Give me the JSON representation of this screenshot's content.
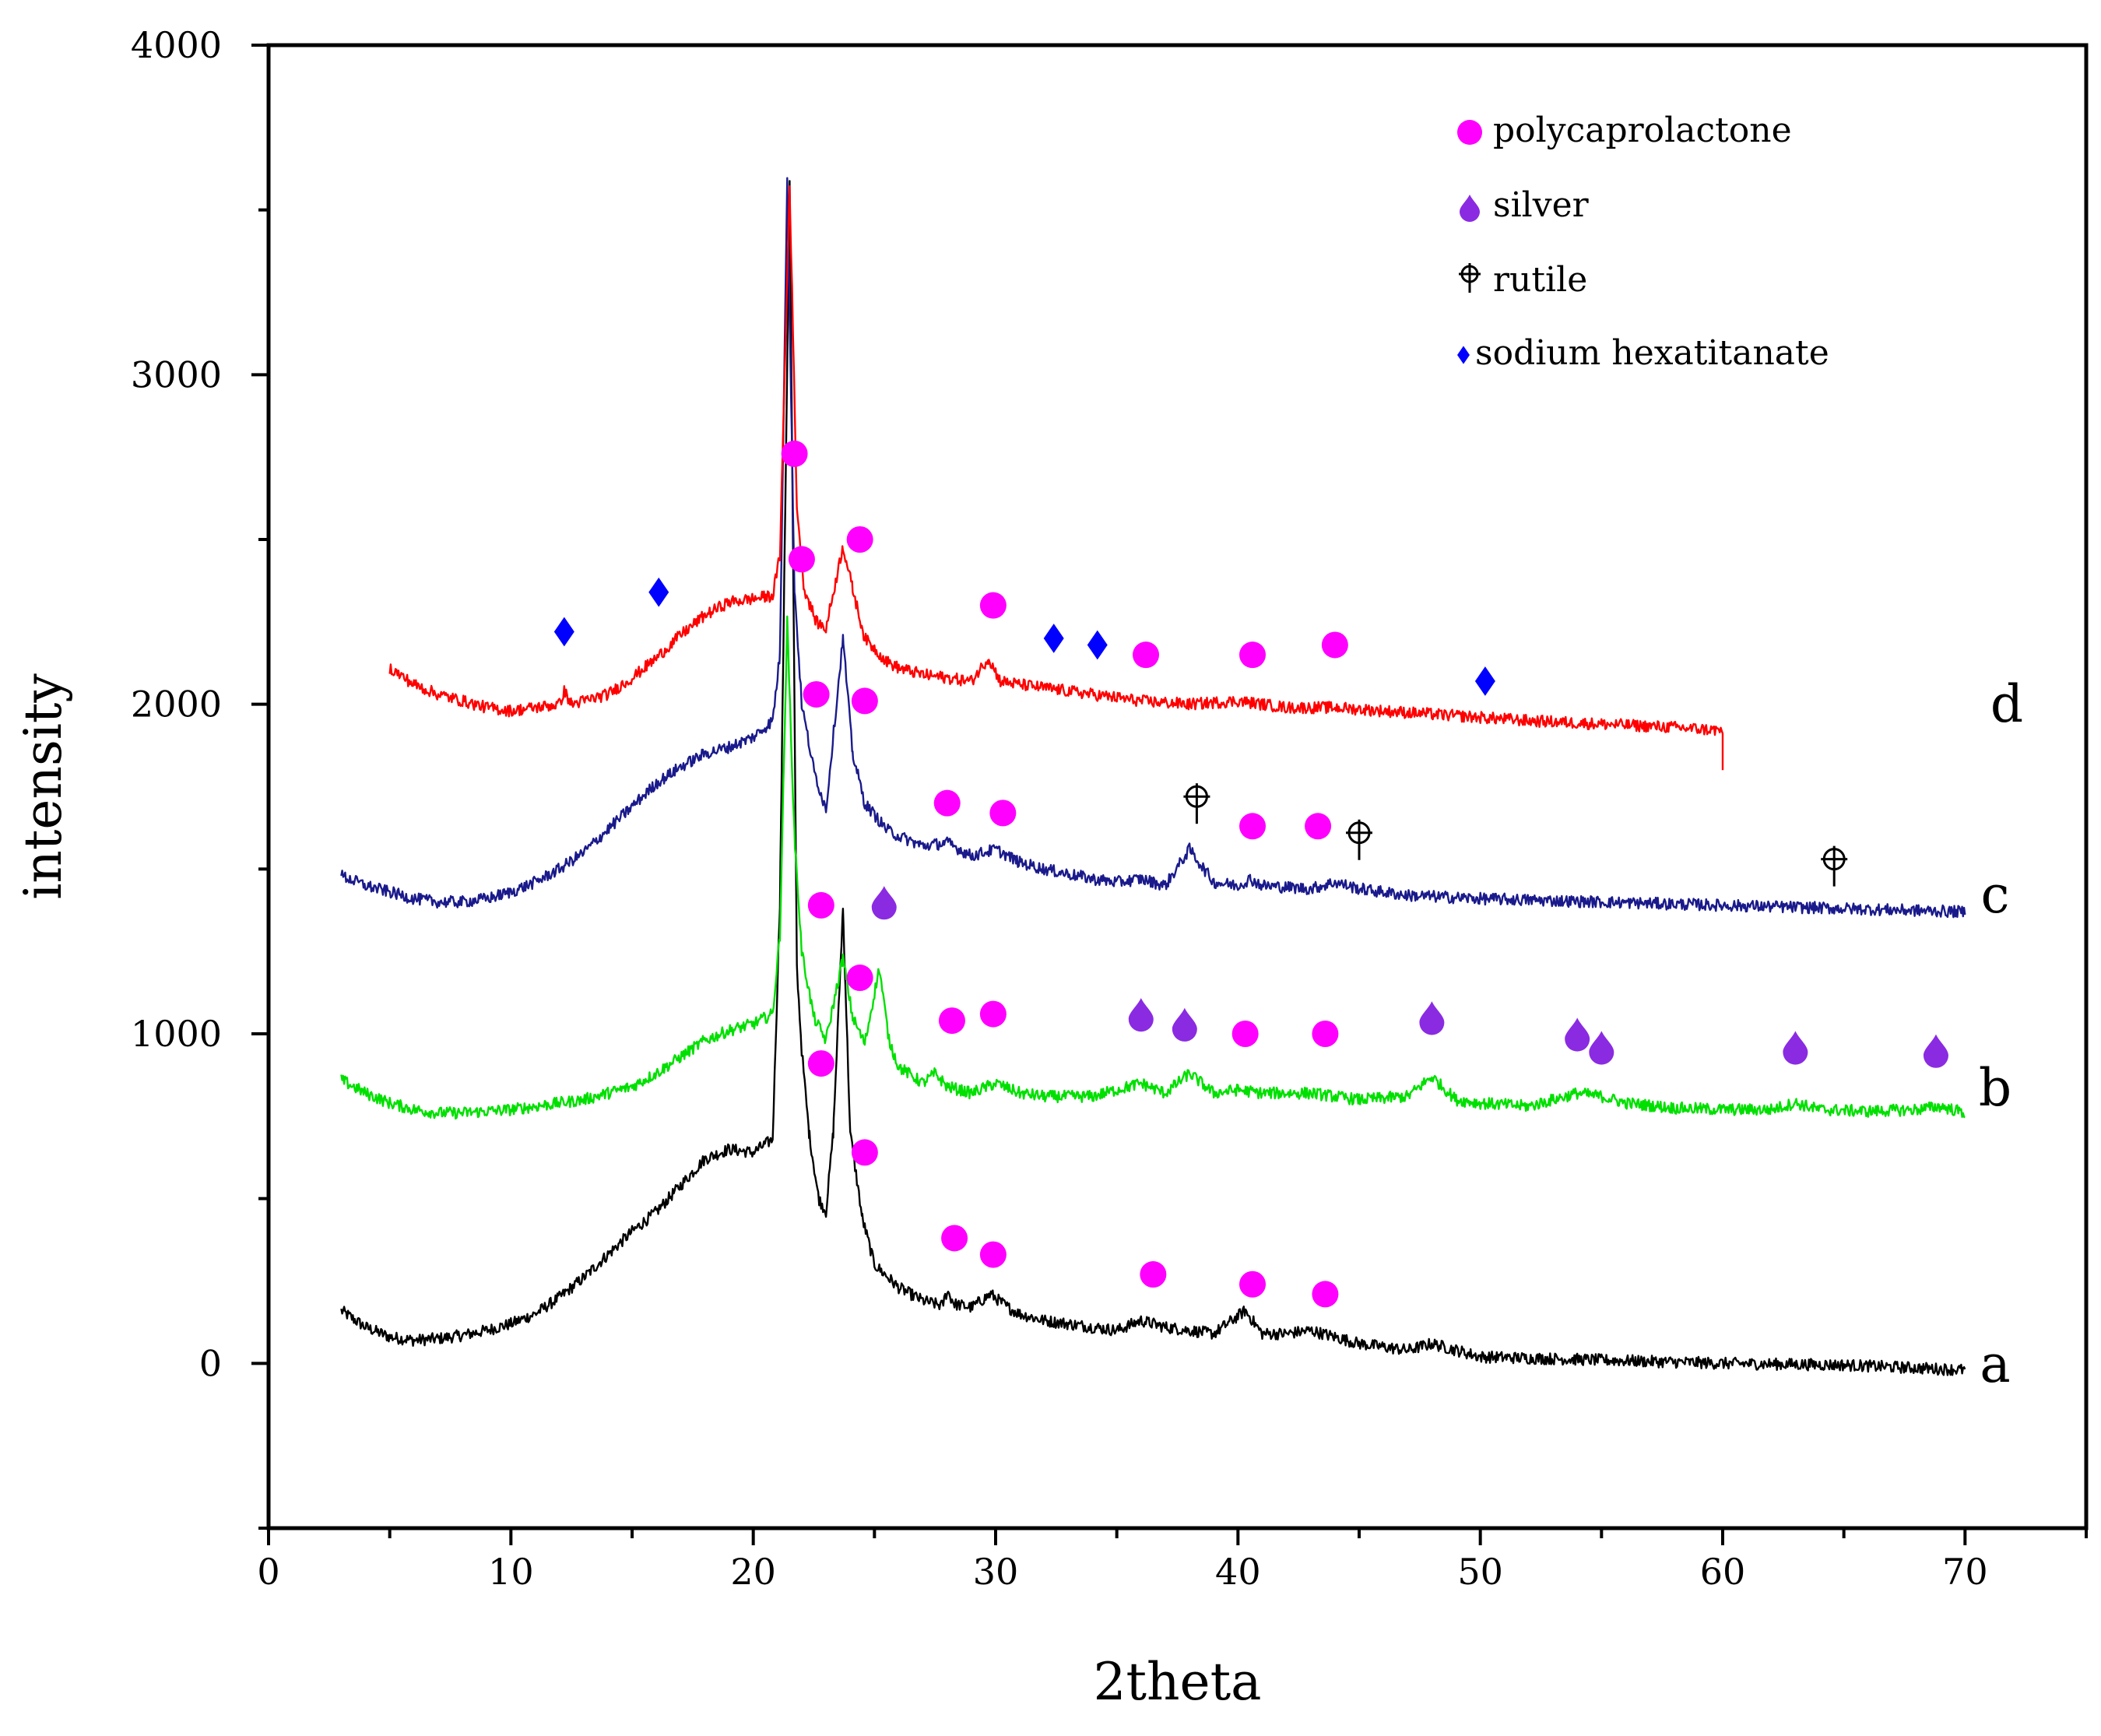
{
  "chart_data": {
    "type": "line",
    "title": "",
    "xlabel": "2theta",
    "ylabel": "intensity",
    "xlim": [
      0,
      75
    ],
    "ylim": [
      -500,
      4000
    ],
    "x_ticks": [
      0,
      10,
      20,
      30,
      40,
      50,
      60,
      70
    ],
    "y_ticks": [
      0,
      1000,
      2000,
      3000,
      4000
    ],
    "legend_position": "top-right",
    "colors": {
      "polycaprolactone": "#ff00ff",
      "silver": "#8a2be2",
      "rutile": "#000000",
      "sodium_hexatitanate": "#0000ff"
    },
    "legend": [
      {
        "key": "pcl",
        "label": "polycaprolactone",
        "marker": "circle"
      },
      {
        "key": "ag",
        "label": "silver",
        "marker": "drop"
      },
      {
        "key": "rut",
        "label": "rutile",
        "marker": "circle-cross"
      },
      {
        "key": "sht",
        "label": "sodium hexatitanate",
        "marker": "diamond"
      }
    ],
    "series": [
      {
        "name": "a",
        "color": "#000000",
        "x_range": [
          3,
          70
        ],
        "points": [
          [
            3,
            160
          ],
          [
            4,
            110
          ],
          [
            5,
            80
          ],
          [
            6,
            70
          ],
          [
            7,
            75
          ],
          [
            8,
            85
          ],
          [
            9,
            100
          ],
          [
            10,
            120
          ],
          [
            11,
            150
          ],
          [
            12,
            200
          ],
          [
            13,
            260
          ],
          [
            14,
            330
          ],
          [
            15,
            400
          ],
          [
            16,
            460
          ],
          [
            17,
            540
          ],
          [
            18,
            620
          ],
          [
            19,
            650
          ],
          [
            20,
            640
          ],
          [
            20.8,
            680
          ],
          [
            21.1,
            1400
          ],
          [
            21.5,
            3580
          ],
          [
            21.8,
            1200
          ],
          [
            22.0,
            950
          ],
          [
            22.3,
            700
          ],
          [
            22.7,
            500
          ],
          [
            23.0,
            460
          ],
          [
            23.3,
            700
          ],
          [
            23.7,
            1380
          ],
          [
            24.0,
            700
          ],
          [
            24.5,
            440
          ],
          [
            25,
            300
          ],
          [
            26,
            230
          ],
          [
            27,
            190
          ],
          [
            27.8,
            175
          ],
          [
            28,
            220
          ],
          [
            28.3,
            180
          ],
          [
            29,
            170
          ],
          [
            29.8,
            210
          ],
          [
            30.5,
            170
          ],
          [
            31,
            150
          ],
          [
            32,
            130
          ],
          [
            34,
            110
          ],
          [
            35,
            100
          ],
          [
            36,
            130
          ],
          [
            37,
            110
          ],
          [
            38,
            100
          ],
          [
            39,
            90
          ],
          [
            40.3,
            160
          ],
          [
            41,
            90
          ],
          [
            42,
            90
          ],
          [
            43,
            100
          ],
          [
            44,
            80
          ],
          [
            45,
            60
          ],
          [
            47,
            40
          ],
          [
            48,
            60
          ],
          [
            50,
            20
          ],
          [
            55,
            10
          ],
          [
            60,
            0
          ],
          [
            65,
            -5
          ],
          [
            70,
            -20
          ]
        ]
      },
      {
        "name": "b",
        "color": "#00e000",
        "x_range": [
          3,
          70
        ],
        "points": [
          [
            3,
            860
          ],
          [
            4,
            820
          ],
          [
            5,
            790
          ],
          [
            6,
            770
          ],
          [
            7,
            760
          ],
          [
            8,
            760
          ],
          [
            9,
            765
          ],
          [
            10,
            770
          ],
          [
            11,
            780
          ],
          [
            12,
            790
          ],
          [
            13,
            800
          ],
          [
            14,
            820
          ],
          [
            15,
            840
          ],
          [
            16,
            880
          ],
          [
            17,
            930
          ],
          [
            18,
            980
          ],
          [
            19,
            1010
          ],
          [
            20,
            1030
          ],
          [
            20.8,
            1060
          ],
          [
            21.1,
            1300
          ],
          [
            21.4,
            2250
          ],
          [
            21.7,
            1600
          ],
          [
            22.0,
            1250
          ],
          [
            22.5,
            1050
          ],
          [
            23,
            980
          ],
          [
            23.7,
            1230
          ],
          [
            24.1,
            1050
          ],
          [
            24.6,
            970
          ],
          [
            25.2,
            1200
          ],
          [
            25.6,
            980
          ],
          [
            26,
            900
          ],
          [
            27,
            850
          ],
          [
            27.5,
            880
          ],
          [
            28,
            840
          ],
          [
            29,
            820
          ],
          [
            30,
            850
          ],
          [
            31,
            820
          ],
          [
            32,
            810
          ],
          [
            34,
            810
          ],
          [
            36,
            850
          ],
          [
            37,
            820
          ],
          [
            38,
            880
          ],
          [
            39,
            820
          ],
          [
            40,
            830
          ],
          [
            41,
            820
          ],
          [
            43,
            820
          ],
          [
            45,
            800
          ],
          [
            47,
            810
          ],
          [
            48,
            870
          ],
          [
            49,
            800
          ],
          [
            50,
            790
          ],
          [
            52,
            780
          ],
          [
            54,
            820
          ],
          [
            55,
            810
          ],
          [
            56,
            790
          ],
          [
            58,
            775
          ],
          [
            60,
            770
          ],
          [
            62,
            770
          ],
          [
            63,
            790
          ],
          [
            64,
            770
          ],
          [
            66,
            765
          ],
          [
            68,
            770
          ],
          [
            69,
            780
          ],
          [
            70,
            760
          ]
        ]
      },
      {
        "name": "c",
        "color": "#1a1a8c",
        "x_range": [
          3,
          70
        ],
        "points": [
          [
            3,
            1480
          ],
          [
            4,
            1450
          ],
          [
            5,
            1430
          ],
          [
            6,
            1410
          ],
          [
            7,
            1400
          ],
          [
            8,
            1400
          ],
          [
            9,
            1410
          ],
          [
            10,
            1430
          ],
          [
            11,
            1460
          ],
          [
            12,
            1500
          ],
          [
            13,
            1550
          ],
          [
            14,
            1620
          ],
          [
            15,
            1690
          ],
          [
            16,
            1760
          ],
          [
            17,
            1810
          ],
          [
            18,
            1850
          ],
          [
            19,
            1870
          ],
          [
            20,
            1900
          ],
          [
            20.8,
            1950
          ],
          [
            21.1,
            2150
          ],
          [
            21.4,
            3600
          ],
          [
            21.7,
            2350
          ],
          [
            22.0,
            2000
          ],
          [
            22.5,
            1800
          ],
          [
            23,
            1680
          ],
          [
            23.7,
            2200
          ],
          [
            24.1,
            1850
          ],
          [
            24.6,
            1700
          ],
          [
            25.5,
            1620
          ],
          [
            26,
            1600
          ],
          [
            27,
            1570
          ],
          [
            28,
            1580
          ],
          [
            29,
            1540
          ],
          [
            30,
            1560
          ],
          [
            31,
            1520
          ],
          [
            32,
            1500
          ],
          [
            34,
            1470
          ],
          [
            35,
            1460
          ],
          [
            36,
            1470
          ],
          [
            37,
            1450
          ],
          [
            38,
            1560
          ],
          [
            39,
            1460
          ],
          [
            40,
            1450
          ],
          [
            40.5,
            1470
          ],
          [
            41,
            1450
          ],
          [
            43,
            1440
          ],
          [
            44,
            1460
          ],
          [
            45,
            1440
          ],
          [
            47,
            1420
          ],
          [
            50,
            1410
          ],
          [
            55,
            1400
          ],
          [
            60,
            1390
          ],
          [
            65,
            1380
          ],
          [
            70,
            1370
          ]
        ]
      },
      {
        "name": "d",
        "color": "#ff0000",
        "x_range": [
          5,
          60
        ],
        "points": [
          [
            5,
            2110
          ],
          [
            6,
            2060
          ],
          [
            7,
            2030
          ],
          [
            8,
            2010
          ],
          [
            9,
            1990
          ],
          [
            10,
            1980
          ],
          [
            11,
            1990
          ],
          [
            12,
            2000
          ],
          [
            12.2,
            2040
          ],
          [
            12.5,
            2000
          ],
          [
            13,
            2010
          ],
          [
            14,
            2030
          ],
          [
            15,
            2080
          ],
          [
            16,
            2140
          ],
          [
            17,
            2210
          ],
          [
            18,
            2270
          ],
          [
            19,
            2310
          ],
          [
            20,
            2320
          ],
          [
            20.8,
            2330
          ],
          [
            21.1,
            2450
          ],
          [
            21.5,
            3580
          ],
          [
            21.8,
            2600
          ],
          [
            22.1,
            2350
          ],
          [
            22.6,
            2250
          ],
          [
            23,
            2230
          ],
          [
            23.7,
            2480
          ],
          [
            24.1,
            2350
          ],
          [
            24.6,
            2200
          ],
          [
            25.5,
            2130
          ],
          [
            26,
            2110
          ],
          [
            27,
            2090
          ],
          [
            28,
            2080
          ],
          [
            29,
            2070
          ],
          [
            29.7,
            2140
          ],
          [
            30.2,
            2070
          ],
          [
            31,
            2060
          ],
          [
            32,
            2050
          ],
          [
            34,
            2030
          ],
          [
            36,
            2010
          ],
          [
            38,
            2000
          ],
          [
            40,
            2010
          ],
          [
            42,
            1990
          ],
          [
            44,
            1990
          ],
          [
            46,
            1980
          ],
          [
            48,
            1970
          ],
          [
            50,
            1960
          ],
          [
            52,
            1950
          ],
          [
            55,
            1940
          ],
          [
            58,
            1930
          ],
          [
            60,
            1920
          ]
        ]
      }
    ],
    "trace_labels": [
      {
        "text": "a",
        "series": "a"
      },
      {
        "text": "b",
        "series": "b"
      },
      {
        "text": "c",
        "series": "c"
      },
      {
        "text": "d",
        "series": "d"
      }
    ],
    "annotations": {
      "polycaprolactone": [
        [
          21.7,
          2760
        ],
        [
          22.0,
          2440
        ],
        [
          24.4,
          2500
        ],
        [
          29.9,
          2300
        ],
        [
          36.2,
          2150
        ],
        [
          40.6,
          2150
        ],
        [
          44.0,
          2180
        ],
        [
          22.6,
          2030
        ],
        [
          24.6,
          2010
        ],
        [
          28.0,
          1700
        ],
        [
          30.3,
          1670
        ],
        [
          40.6,
          1630
        ],
        [
          43.3,
          1630
        ],
        [
          22.8,
          1390
        ],
        [
          24.4,
          1170
        ],
        [
          28.2,
          1040
        ],
        [
          29.9,
          1060
        ],
        [
          40.3,
          1000
        ],
        [
          43.6,
          1000
        ],
        [
          22.8,
          910
        ],
        [
          24.6,
          640
        ],
        [
          28.3,
          380
        ],
        [
          29.9,
          330
        ],
        [
          36.5,
          270
        ],
        [
          40.6,
          240
        ],
        [
          43.6,
          210
        ]
      ],
      "silver": [
        [
          25.4,
          1390
        ],
        [
          36.0,
          1050
        ],
        [
          37.8,
          1020
        ],
        [
          48.0,
          1040
        ],
        [
          54.0,
          990
        ],
        [
          55.0,
          950
        ],
        [
          63.0,
          950
        ],
        [
          68.8,
          940
        ]
      ],
      "rutile": [
        [
          38.3,
          1720
        ],
        [
          45.0,
          1610
        ],
        [
          64.6,
          1530
        ]
      ],
      "sodium_hexatitanate": [
        [
          12.2,
          2220
        ],
        [
          16.1,
          2340
        ],
        [
          32.4,
          2200
        ],
        [
          34.2,
          2180
        ],
        [
          50.2,
          2070
        ]
      ]
    }
  }
}
